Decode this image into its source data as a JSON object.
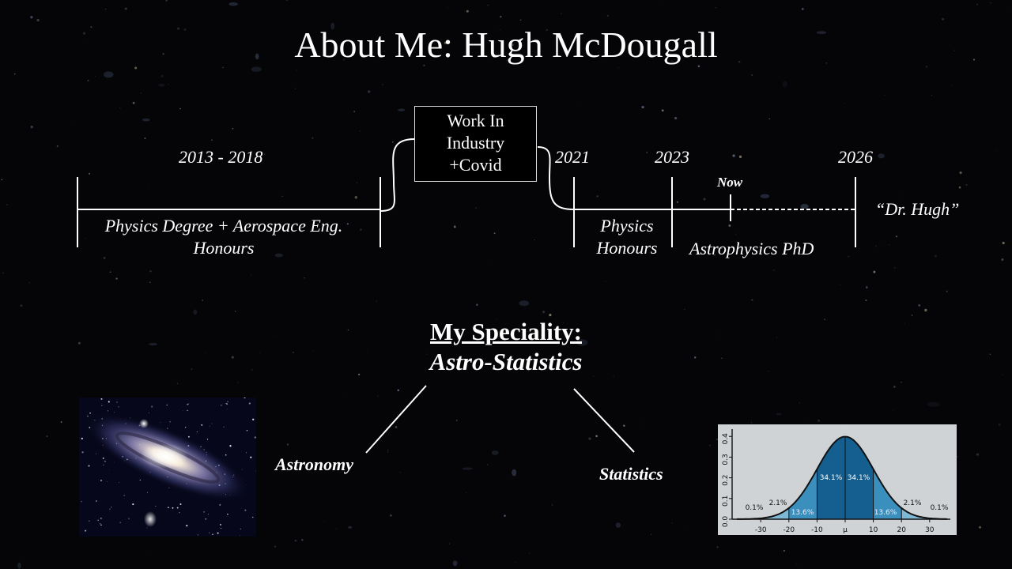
{
  "title": "About Me: Hugh McDougall",
  "timeline": {
    "periods": {
      "p1": "2013 - 2018",
      "y2021": "2021",
      "y2023": "2023",
      "y2026": "2026",
      "now": "Now"
    },
    "gap_box": [
      "Work In",
      "Industry",
      "+Covid"
    ],
    "labels": {
      "degree_line1": "Physics Degree + Aerospace Eng.",
      "degree_line2": "Honours",
      "honours_line1": "Physics",
      "honours_line2": "Honours",
      "phd": "Astrophysics PhD",
      "goal": "“Dr. Hugh”"
    }
  },
  "speciality": {
    "heading": "My Speciality:",
    "field": "Astro-Statistics",
    "branches": [
      "Astronomy",
      "Statistics"
    ]
  },
  "normal_curve": {
    "y_ticks": [
      "0.4",
      "0.3",
      "0.2",
      "0.1",
      "0.0"
    ],
    "x_ticks": [
      "-30",
      "-20",
      "-10",
      "μ",
      "10",
      "20",
      "30"
    ],
    "percentages": [
      "0.1%",
      "2.1%",
      "13.6%",
      "34.1%",
      "34.1%",
      "13.6%",
      "2.1%",
      "0.1%"
    ]
  }
}
